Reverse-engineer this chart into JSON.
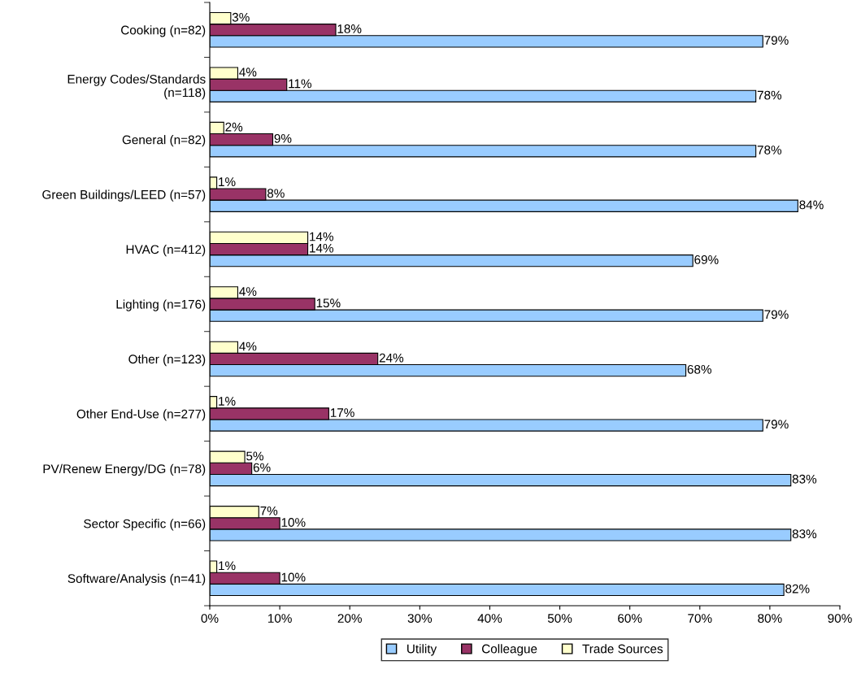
{
  "chart_data": {
    "type": "bar",
    "orientation": "horizontal",
    "categories": [
      "Cooking (n=82)",
      "Energy Codes/Standards\n(n=118)",
      "General (n=82)",
      "Green Buildings/LEED (n=57)",
      "HVAC (n=412)",
      "Lighting (n=176)",
      "Other (n=123)",
      "Other End-Use (n=277)",
      "PV/Renew Energy/DG (n=78)",
      "Sector Specific (n=66)",
      "Software/Analysis (n=41)"
    ],
    "series": [
      {
        "name": "Utility",
        "color": "#99ccff",
        "values": [
          79,
          78,
          78,
          84,
          69,
          79,
          68,
          79,
          83,
          83,
          82
        ],
        "value_labels": [
          "79%",
          "78%",
          "78%",
          "84%",
          "69%",
          "79%",
          "68%",
          "79%",
          "83%",
          "83%",
          "82%"
        ]
      },
      {
        "name": "Colleague",
        "color": "#993366",
        "values": [
          18,
          11,
          9,
          8,
          14,
          15,
          24,
          17,
          6,
          10,
          10
        ],
        "value_labels": [
          "18%",
          "11%",
          "9%",
          "8%",
          "14%",
          "15%",
          "24%",
          "17%",
          "6%",
          "10%",
          "10%"
        ]
      },
      {
        "name": "Trade Sources",
        "color": "#ffffcc",
        "values": [
          3,
          4,
          2,
          1,
          14,
          4,
          4,
          1,
          5,
          7,
          1
        ],
        "value_labels": [
          "3%",
          "4%",
          "2%",
          "1%",
          "14%",
          "4%",
          "4%",
          "1%",
          "5%",
          "7%",
          "1%"
        ]
      }
    ],
    "xlim": [
      0,
      90
    ],
    "xticks": [
      {
        "value": 0,
        "label": "0%"
      },
      {
        "value": 10,
        "label": "10%"
      },
      {
        "value": 20,
        "label": "20%"
      },
      {
        "value": 30,
        "label": "30%"
      },
      {
        "value": 40,
        "label": "40%"
      },
      {
        "value": 50,
        "label": "50%"
      },
      {
        "value": 60,
        "label": "60%"
      },
      {
        "value": 70,
        "label": "70%"
      },
      {
        "value": 80,
        "label": "80%"
      },
      {
        "value": 90,
        "label": "90%"
      }
    ],
    "legend": "bottom",
    "grid": false
  }
}
